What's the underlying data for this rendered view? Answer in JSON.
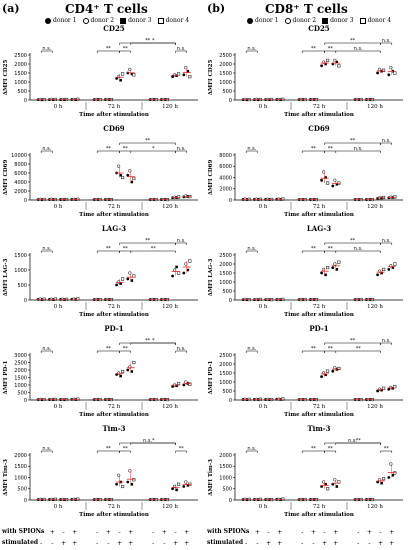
{
  "panels": [
    {
      "label": "(a)",
      "title": "CD4⁺ T cells"
    },
    {
      "label": "(b)",
      "title": "CD8⁺ T cells"
    }
  ],
  "legend": [
    {
      "name": "donor 1",
      "symbol": "filled-circle"
    },
    {
      "name": "donor 2",
      "symbol": "open-circle"
    },
    {
      "name": "donor 3",
      "symbol": "filled-square"
    },
    {
      "name": "donor 4",
      "symbol": "open-square"
    }
  ],
  "xlabel": "Time after stimulation",
  "timepoints": [
    "0 h",
    "72 h",
    "120 h"
  ],
  "footer": {
    "row1_label": "with SPIONs",
    "row2_label": "stimulated",
    "row1_signs": [
      "-",
      "+",
      "-",
      "+",
      "-",
      "+",
      "-",
      "+",
      "-",
      "+",
      "-",
      "+"
    ],
    "row2_signs": [
      "-",
      "-",
      "+",
      "+",
      "-",
      "-",
      "+",
      "+",
      "-",
      "-",
      "+",
      "+"
    ]
  },
  "colors": {
    "mean_bar": "#e03030",
    "axis": "#000000"
  },
  "chart_data": [
    {
      "type": "scatter",
      "panel": "(a)",
      "title": "CD25",
      "ylabel": "ΔMFI CD25",
      "yticks": [
        0,
        500,
        1000,
        1500,
        2000,
        2500
      ],
      "ylim": [
        0,
        2500
      ],
      "groups": [
        [
          20,
          30,
          10,
          25
        ],
        [
          20,
          35,
          15,
          30
        ],
        [
          20,
          25,
          15,
          30
        ],
        [
          25,
          30,
          20,
          40
        ],
        [
          1200,
          1300,
          1100,
          1450
        ],
        [
          1500,
          1700,
          1450,
          1400
        ],
        [
          1300,
          1400,
          1350,
          1450
        ],
        [
          1400,
          1800,
          1600,
          1300
        ]
      ],
      "means": [
        21,
        25,
        22,
        29,
        1262,
        1512,
        1375,
        1525
      ],
      "sig": [
        {
          "from": 0,
          "to": 1,
          "text": "n.s.",
          "level": 0
        },
        {
          "from": 2,
          "to": 3,
          "text": "**",
          "level": 0
        },
        {
          "from": 3,
          "to": 4,
          "text": "**",
          "level": 0
        },
        {
          "from": 4,
          "to": 5,
          "text": "**",
          "level": 1
        },
        {
          "from": 5,
          "to": 6,
          "text": "*",
          "level": 1
        },
        {
          "from": 6,
          "to": 7,
          "text": "n.s.",
          "level": 0
        }
      ]
    },
    {
      "type": "scatter",
      "panel": "(a)",
      "title": "CD69",
      "ylabel": "ΔMFI CD69",
      "yticks": [
        0,
        2000,
        4000,
        6000,
        8000,
        10000
      ],
      "ylim": [
        0,
        10000
      ],
      "groups": [
        [
          100,
          150,
          80,
          120
        ],
        [
          100,
          150,
          90,
          110
        ],
        [
          100,
          120,
          90,
          110
        ],
        [
          120,
          140,
          100,
          150
        ],
        [
          6000,
          7500,
          5500,
          5000
        ],
        [
          5500,
          6500,
          4000,
          4800
        ],
        [
          500,
          600,
          550,
          650
        ],
        [
          700,
          900,
          800,
          750
        ]
      ],
      "means": [
        112,
        112,
        105,
        127,
        6000,
        5200,
        575,
        787
      ],
      "sig": [
        {
          "from": 0,
          "to": 1,
          "text": "n.s.",
          "level": 0
        },
        {
          "from": 2,
          "to": 3,
          "text": "**",
          "level": 0
        },
        {
          "from": 3,
          "to": 4,
          "text": "**",
          "level": 0
        },
        {
          "from": 4,
          "to": 5,
          "text": "**",
          "level": 1
        },
        {
          "from": 5,
          "to": 6,
          "text": "*",
          "level": 0
        },
        {
          "from": 6,
          "to": 7,
          "text": "n.s.",
          "level": 0
        }
      ]
    },
    {
      "type": "scatter",
      "panel": "(a)",
      "title": "LAG-3",
      "ylabel": "ΔMFI LAG-3",
      "yticks": [
        0,
        500,
        1000,
        1500
      ],
      "ylim": [
        0,
        1500
      ],
      "groups": [
        [
          20,
          30,
          15,
          25
        ],
        [
          20,
          25,
          15,
          30
        ],
        [
          20,
          25,
          15,
          20
        ],
        [
          25,
          30,
          20,
          35
        ],
        [
          500,
          600,
          550,
          700
        ],
        [
          700,
          900,
          650,
          800
        ],
        [
          800,
          1000,
          1100,
          900
        ],
        [
          900,
          1200,
          1000,
          1300
        ]
      ],
      "means": [
        22,
        22,
        20,
        27,
        587,
        762,
        950,
        1100
      ],
      "sig": [
        {
          "from": 0,
          "to": 1,
          "text": "n.s.",
          "level": 0
        },
        {
          "from": 2,
          "to": 3,
          "text": "**",
          "level": 0
        },
        {
          "from": 3,
          "to": 4,
          "text": "**",
          "level": 0
        },
        {
          "from": 4,
          "to": 5,
          "text": "**",
          "level": 1
        },
        {
          "from": 5,
          "to": 6,
          "text": "**",
          "level": 0
        },
        {
          "from": 6,
          "to": 7,
          "text": "n.s.",
          "level": 1
        }
      ]
    },
    {
      "type": "scatter",
      "panel": "(a)",
      "title": "PD-1",
      "ylabel": "ΔMFI PD-1",
      "yticks": [
        0,
        500,
        1000,
        1500,
        2000,
        2500,
        3000
      ],
      "ylim": [
        0,
        3000
      ],
      "groups": [
        [
          30,
          40,
          20,
          35
        ],
        [
          30,
          35,
          25,
          40
        ],
        [
          30,
          35,
          20,
          30
        ],
        [
          40,
          45,
          30,
          50
        ],
        [
          1700,
          1800,
          1600,
          1900
        ],
        [
          2000,
          2200,
          1900,
          2500
        ],
        [
          900,
          1000,
          950,
          1100
        ],
        [
          1000,
          1200,
          1100,
          1050
        ]
      ],
      "means": [
        31,
        32,
        29,
        41,
        1750,
        2150,
        987,
        1087
      ],
      "sig": [
        {
          "from": 0,
          "to": 1,
          "text": "n.s.",
          "level": 0
        },
        {
          "from": 2,
          "to": 3,
          "text": "**",
          "level": 0
        },
        {
          "from": 3,
          "to": 4,
          "text": "**",
          "level": 0
        },
        {
          "from": 4,
          "to": 5,
          "text": "**",
          "level": 1
        },
        {
          "from": 5,
          "to": 6,
          "text": "*",
          "level": 1
        },
        {
          "from": 6,
          "to": 7,
          "text": "n.s.",
          "level": 0
        }
      ]
    },
    {
      "type": "scatter",
      "panel": "(a)",
      "title": "Tim-3",
      "ylabel": "ΔMFI Tim-3",
      "yticks": [
        0,
        500,
        1000,
        1500,
        2000
      ],
      "ylim": [
        0,
        2000
      ],
      "groups": [
        [
          20,
          30,
          15,
          25
        ],
        [
          20,
          25,
          15,
          30
        ],
        [
          20,
          25,
          15,
          20
        ],
        [
          25,
          30,
          20,
          35
        ],
        [
          700,
          1100,
          800,
          600
        ],
        [
          800,
          1300,
          700,
          900
        ],
        [
          500,
          600,
          450,
          700
        ],
        [
          600,
          800,
          650,
          700
        ]
      ],
      "means": [
        22,
        22,
        20,
        27,
        800,
        925,
        562,
        687
      ],
      "sig": [
        {
          "from": 0,
          "to": 1,
          "text": "n.s.",
          "level": 0
        },
        {
          "from": 2,
          "to": 3,
          "text": "**",
          "level": 0
        },
        {
          "from": 3,
          "to": 4,
          "text": "**",
          "level": 0
        },
        {
          "from": 4,
          "to": 5,
          "text": "n.s.",
          "level": 1
        },
        {
          "from": 5,
          "to": 6,
          "text": "*",
          "level": 1
        },
        {
          "from": 6,
          "to": 7,
          "text": "**",
          "level": 0
        }
      ]
    },
    {
      "type": "scatter",
      "panel": "(b)",
      "title": "CD25",
      "ylabel": "ΔMFI CD25",
      "yticks": [
        0,
        500,
        1000,
        1500,
        2000,
        2500
      ],
      "ylim": [
        0,
        2500
      ],
      "groups": [
        [
          20,
          30,
          10,
          25
        ],
        [
          20,
          35,
          15,
          30
        ],
        [
          20,
          25,
          15,
          30
        ],
        [
          25,
          30,
          20,
          40
        ],
        [
          1900,
          2100,
          2000,
          2200
        ],
        [
          2000,
          2200,
          2100,
          1900
        ],
        [
          1500,
          1700,
          1600,
          1650
        ],
        [
          1400,
          1800,
          1600,
          1500
        ]
      ],
      "means": [
        21,
        25,
        22,
        29,
        2050,
        2050,
        1612,
        1575
      ],
      "sig": [
        {
          "from": 0,
          "to": 1,
          "text": "n.s.",
          "level": 0
        },
        {
          "from": 2,
          "to": 3,
          "text": "**",
          "level": 0
        },
        {
          "from": 3,
          "to": 4,
          "text": "**",
          "level": 0
        },
        {
          "from": 4,
          "to": 5,
          "text": "**",
          "level": 1
        },
        {
          "from": 5,
          "to": 6,
          "text": "n.s.",
          "level": 0
        },
        {
          "from": 6,
          "to": 7,
          "text": "n.s.",
          "level": 1
        }
      ]
    },
    {
      "type": "scatter",
      "panel": "(b)",
      "title": "CD69",
      "ylabel": "ΔMFI CD69",
      "yticks": [
        0,
        2000,
        4000,
        6000,
        8000
      ],
      "ylim": [
        0,
        8000
      ],
      "groups": [
        [
          100,
          150,
          80,
          120
        ],
        [
          100,
          150,
          90,
          110
        ],
        [
          100,
          120,
          90,
          110
        ],
        [
          120,
          140,
          100,
          150
        ],
        [
          3500,
          5000,
          4000,
          3000
        ],
        [
          2500,
          3500,
          2800,
          3000
        ],
        [
          300,
          400,
          350,
          450
        ],
        [
          400,
          500,
          450,
          550
        ]
      ],
      "means": [
        112,
        112,
        105,
        127,
        3875,
        2950,
        375,
        475
      ],
      "sig": [
        {
          "from": 0,
          "to": 1,
          "text": "n.s.",
          "level": 0
        },
        {
          "from": 2,
          "to": 3,
          "text": "**",
          "level": 0
        },
        {
          "from": 3,
          "to": 4,
          "text": "**",
          "level": 0
        },
        {
          "from": 4,
          "to": 5,
          "text": "**",
          "level": 1
        },
        {
          "from": 5,
          "to": 6,
          "text": "n.s.",
          "level": 0
        },
        {
          "from": 6,
          "to": 7,
          "text": "n.s.",
          "level": 1
        }
      ]
    },
    {
      "type": "scatter",
      "panel": "(b)",
      "title": "LAG-3",
      "ylabel": "ΔMFI LAG-3",
      "yticks": [
        0,
        500,
        1000,
        1500,
        2000,
        2500
      ],
      "ylim": [
        0,
        2500
      ],
      "groups": [
        [
          20,
          30,
          15,
          25
        ],
        [
          20,
          25,
          15,
          30
        ],
        [
          20,
          25,
          15,
          20
        ],
        [
          25,
          30,
          20,
          35
        ],
        [
          1500,
          1700,
          1400,
          1800
        ],
        [
          1800,
          2000,
          1700,
          2100
        ],
        [
          1400,
          1600,
          1500,
          1700
        ],
        [
          1700,
          1900,
          1800,
          2000
        ]
      ],
      "means": [
        22,
        22,
        20,
        27,
        1600,
        1900,
        1550,
        1850
      ],
      "sig": [
        {
          "from": 0,
          "to": 1,
          "text": "n.s.",
          "level": 0
        },
        {
          "from": 2,
          "to": 3,
          "text": "**",
          "level": 0
        },
        {
          "from": 3,
          "to": 4,
          "text": "**",
          "level": 0
        },
        {
          "from": 4,
          "to": 5,
          "text": "**",
          "level": 1
        },
        {
          "from": 5,
          "to": 6,
          "text": "n.s.",
          "level": 0
        },
        {
          "from": 6,
          "to": 7,
          "text": "n.s.",
          "level": 1
        }
      ]
    },
    {
      "type": "scatter",
      "panel": "(b)",
      "title": "PD-1",
      "ylabel": "ΔMFI PD-1",
      "yticks": [
        0,
        500,
        1000,
        1500,
        2000,
        2500
      ],
      "ylim": [
        0,
        2500
      ],
      "groups": [
        [
          30,
          40,
          20,
          35
        ],
        [
          30,
          35,
          25,
          40
        ],
        [
          30,
          35,
          20,
          30
        ],
        [
          40,
          45,
          30,
          50
        ],
        [
          1300,
          1500,
          1400,
          1600
        ],
        [
          1600,
          1800,
          1700,
          1750
        ],
        [
          500,
          600,
          550,
          650
        ],
        [
          600,
          700,
          650,
          750
        ]
      ],
      "means": [
        31,
        32,
        29,
        41,
        1450,
        1712,
        575,
        675
      ],
      "sig": [
        {
          "from": 0,
          "to": 1,
          "text": "n.s.",
          "level": 0
        },
        {
          "from": 2,
          "to": 3,
          "text": "**",
          "level": 0
        },
        {
          "from": 3,
          "to": 4,
          "text": "**",
          "level": 0
        },
        {
          "from": 4,
          "to": 5,
          "text": "**",
          "level": 1
        },
        {
          "from": 5,
          "to": 6,
          "text": "**",
          "level": 0
        },
        {
          "from": 6,
          "to": 7,
          "text": "n.s.",
          "level": 1
        }
      ]
    },
    {
      "type": "scatter",
      "panel": "(b)",
      "title": "Tim-3",
      "ylabel": "ΔMFI Tim-3",
      "yticks": [
        0,
        500,
        1000,
        1500,
        2000
      ],
      "ylim": [
        0,
        2000
      ],
      "groups": [
        [
          20,
          30,
          15,
          25
        ],
        [
          20,
          25,
          15,
          30
        ],
        [
          20,
          25,
          15,
          20
        ],
        [
          25,
          30,
          20,
          35
        ],
        [
          600,
          800,
          700,
          500
        ],
        [
          700,
          900,
          600,
          800
        ],
        [
          800,
          900,
          750,
          950
        ],
        [
          1000,
          1600,
          1100,
          1200
        ]
      ],
      "means": [
        22,
        22,
        20,
        27,
        650,
        750,
        850,
        1225
      ],
      "sig": [
        {
          "from": 0,
          "to": 1,
          "text": "n.s.",
          "level": 0
        },
        {
          "from": 2,
          "to": 3,
          "text": "**",
          "level": 0
        },
        {
          "from": 3,
          "to": 4,
          "text": "**",
          "level": 0
        },
        {
          "from": 4,
          "to": 5,
          "text": "n.s.",
          "level": 1
        },
        {
          "from": 5,
          "to": 6,
          "text": "**",
          "level": 1
        },
        {
          "from": 6,
          "to": 7,
          "text": "**",
          "level": 0
        }
      ]
    }
  ]
}
